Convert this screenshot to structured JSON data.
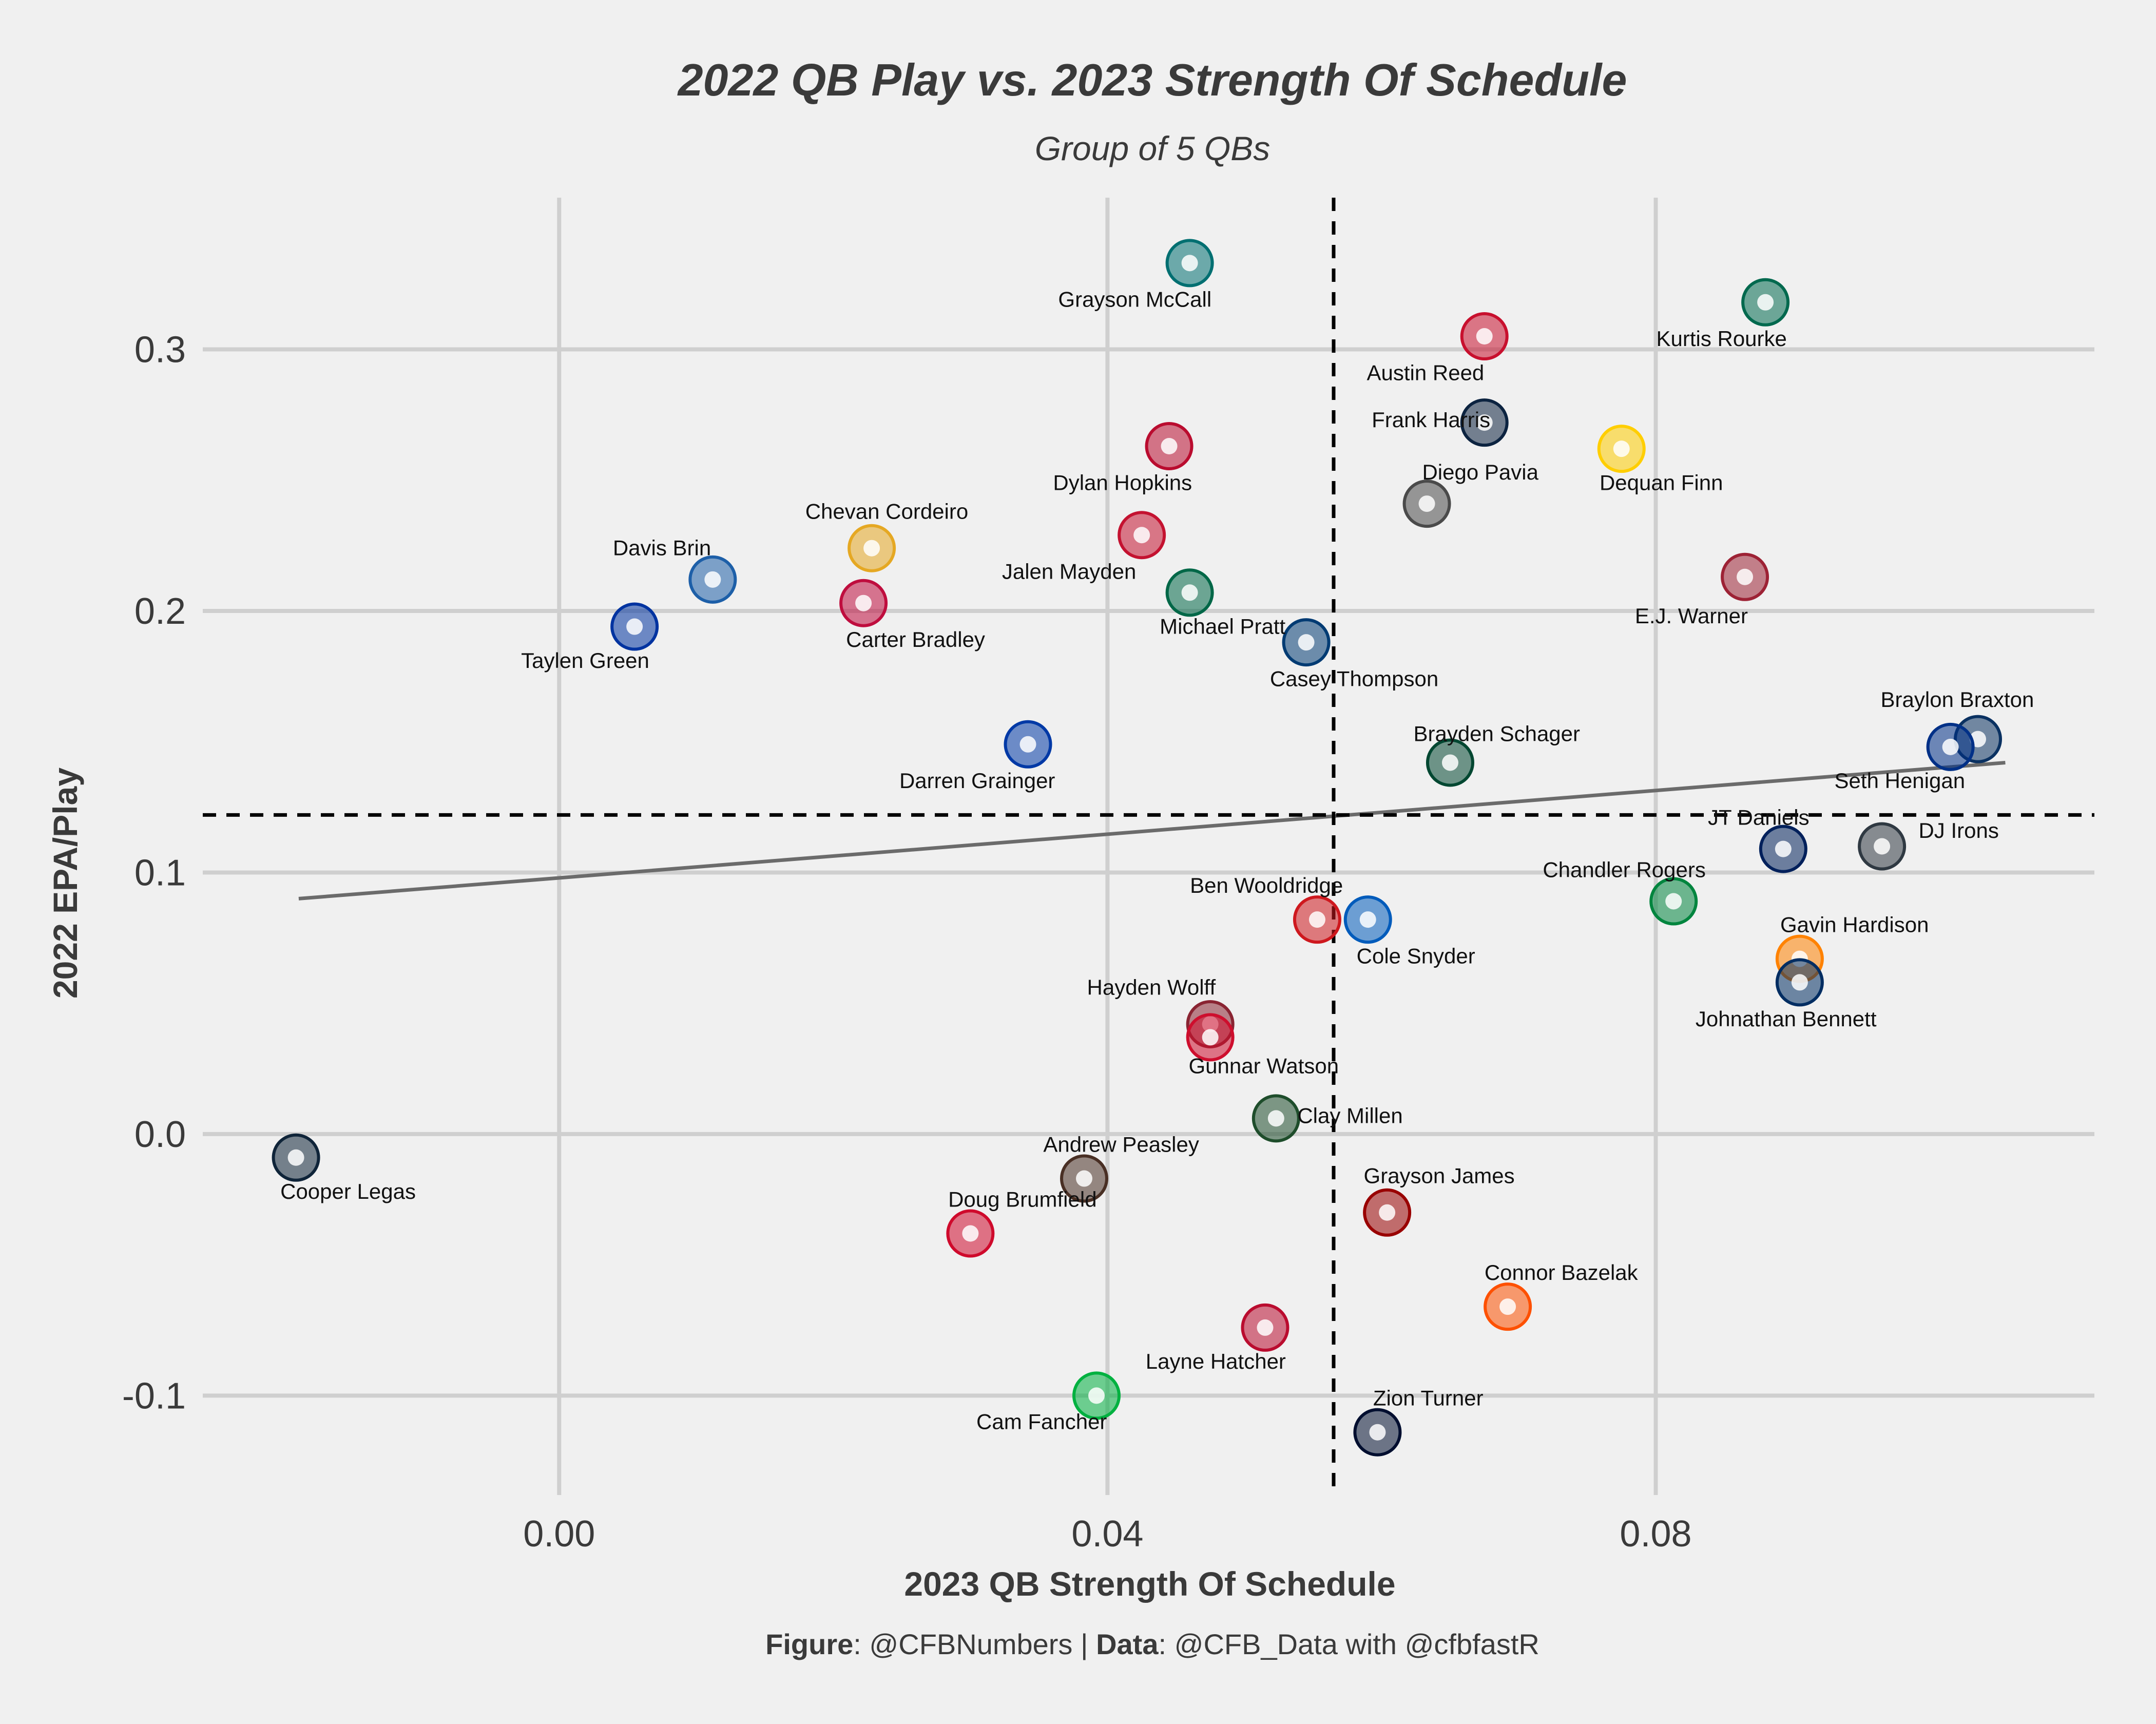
{
  "chart_data": {
    "type": "scatter",
    "title": "2022 QB Play vs. 2023 Strength Of Schedule",
    "subtitle": "Group of 5 QBs",
    "xlabel": "2023 QB Strength Of Schedule",
    "ylabel": "2022 EPA/Play",
    "xlim": [
      -0.026,
      0.112
    ],
    "ylim": [
      -0.138,
      0.358
    ],
    "x_ticks": [
      0.0,
      0.04,
      0.08
    ],
    "x_tick_labels": [
      "0.00",
      "0.04",
      "0.08"
    ],
    "y_ticks": [
      -0.1,
      0.0,
      0.1,
      0.2,
      0.3
    ],
    "y_tick_labels": [
      "-0.1",
      "0.0",
      "0.1",
      "0.2",
      "0.3"
    ],
    "grid": true,
    "legend": "none",
    "mean_lines": {
      "x": 0.0565,
      "y": 0.122
    },
    "trend_line": {
      "x": [
        -0.019,
        0.1055
      ],
      "y": [
        0.09,
        0.142
      ]
    },
    "points": [
      {
        "name": "Grayson McCall",
        "x": 0.046,
        "y": 0.333,
        "color": "#006f71",
        "lx": 0.042,
        "ly": 0.319
      },
      {
        "name": "Kurtis Rourke",
        "x": 0.088,
        "y": 0.318,
        "color": "#00694e",
        "lx": 0.0848,
        "ly": 0.304
      },
      {
        "name": "Austin Reed",
        "x": 0.0675,
        "y": 0.305,
        "color": "#c8102e",
        "lx": 0.0632,
        "ly": 0.291
      },
      {
        "name": "Frank Harris",
        "x": 0.0675,
        "y": 0.272,
        "color": "#0c2340",
        "lx": 0.0636,
        "ly": 0.273
      },
      {
        "name": "Dequan Finn",
        "x": 0.0775,
        "y": 0.262,
        "color": "#ffce00",
        "lx": 0.0804,
        "ly": 0.249
      },
      {
        "name": "Dylan Hopkins",
        "x": 0.0445,
        "y": 0.263,
        "color": "#ba0c2f",
        "lx": 0.0411,
        "ly": 0.249
      },
      {
        "name": "Diego Pavia",
        "x": 0.0633,
        "y": 0.241,
        "color": "#4a4a4a",
        "lx": 0.0672,
        "ly": 0.253
      },
      {
        "name": "Chevan Cordeiro",
        "x": 0.0228,
        "y": 0.224,
        "color": "#e5a823",
        "lx": 0.0239,
        "ly": 0.238
      },
      {
        "name": "Davis Brin",
        "x": 0.0112,
        "y": 0.212,
        "color": "#1d5fa8",
        "lx": 0.0075,
        "ly": 0.224
      },
      {
        "name": "Jalen Mayden",
        "x": 0.0425,
        "y": 0.229,
        "color": "#c41230",
        "lx": 0.0372,
        "ly": 0.215
      },
      {
        "name": "E.J. Warner",
        "x": 0.0865,
        "y": 0.213,
        "color": "#9d2235",
        "lx": 0.0826,
        "ly": 0.198
      },
      {
        "name": "Michael Pratt",
        "x": 0.046,
        "y": 0.207,
        "color": "#006747",
        "lx": 0.0484,
        "ly": 0.194
      },
      {
        "name": "Carter Bradley",
        "x": 0.0222,
        "y": 0.203,
        "color": "#bf0d3e",
        "lx": 0.026,
        "ly": 0.189
      },
      {
        "name": "Taylen Green",
        "x": 0.0055,
        "y": 0.194,
        "color": "#0033a0",
        "lx": 0.0019,
        "ly": 0.181
      },
      {
        "name": "Casey Thompson",
        "x": 0.0545,
        "y": 0.188,
        "color": "#003b73",
        "lx": 0.058,
        "ly": 0.174
      },
      {
        "name": "Braylon Braxton",
        "x": 0.1035,
        "y": 0.151,
        "color": "#0a3161",
        "lx": 0.102,
        "ly": 0.166
      },
      {
        "name": "Darren Grainger",
        "x": 0.0342,
        "y": 0.149,
        "color": "#0039a6",
        "lx": 0.0305,
        "ly": 0.135
      },
      {
        "name": "Brayden Schager",
        "x": 0.065,
        "y": 0.142,
        "color": "#024731",
        "lx": 0.0684,
        "ly": 0.153
      },
      {
        "name": "Seth Henigan",
        "x": 0.1015,
        "y": 0.148,
        "color": "#003087",
        "lx": 0.0978,
        "ly": 0.135
      },
      {
        "name": "JT Daniels",
        "x": 0.0893,
        "y": 0.109,
        "color": "#00205b",
        "lx": 0.0875,
        "ly": 0.121
      },
      {
        "name": "DJ Irons",
        "x": 0.0965,
        "y": 0.11,
        "color": "#2f3942",
        "lx": 0.1021,
        "ly": 0.116
      },
      {
        "name": "Chandler Rogers",
        "x": 0.0813,
        "y": 0.089,
        "color": "#00853e",
        "lx": 0.0777,
        "ly": 0.101
      },
      {
        "name": "Ben Wooldridge",
        "x": 0.0553,
        "y": 0.082,
        "color": "#ce181e",
        "lx": 0.0516,
        "ly": 0.095
      },
      {
        "name": "Cole Snyder",
        "x": 0.059,
        "y": 0.082,
        "color": "#005bbb",
        "lx": 0.0625,
        "ly": 0.068
      },
      {
        "name": "Gavin Hardison",
        "x": 0.0905,
        "y": 0.067,
        "color": "#ff8200",
        "lx": 0.0945,
        "ly": 0.08
      },
      {
        "name": "Johnathan Bennett",
        "x": 0.0905,
        "y": 0.058,
        "color": "#002d62",
        "lx": 0.0895,
        "ly": 0.044
      },
      {
        "name": "Hayden Wolff",
        "x": 0.0475,
        "y": 0.042,
        "color": "#8a2432",
        "lx": 0.0432,
        "ly": 0.056
      },
      {
        "name": "Gunnar Watson",
        "x": 0.0475,
        "y": 0.037,
        "color": "#ce0e2d",
        "lx": 0.0514,
        "ly": 0.026
      },
      {
        "name": "Clay Millen",
        "x": 0.0523,
        "y": 0.006,
        "color": "#1e4d2b",
        "lx": 0.0577,
        "ly": 0.007
      },
      {
        "name": "Cooper Legas",
        "x": -0.0192,
        "y": -0.009,
        "color": "#0f2439",
        "lx": -0.0154,
        "ly": -0.022
      },
      {
        "name": "Andrew Peasley",
        "x": 0.0383,
        "y": -0.017,
        "color": "#492f24",
        "lx": 0.041,
        "ly": -0.004
      },
      {
        "name": "Grayson James",
        "x": 0.0604,
        "y": -0.03,
        "color": "#990000",
        "lx": 0.0642,
        "ly": -0.016
      },
      {
        "name": "Doug Brumfield",
        "x": 0.03,
        "y": -0.038,
        "color": "#cf0a2c",
        "lx": 0.0338,
        "ly": -0.025
      },
      {
        "name": "Connor Bazelak",
        "x": 0.0692,
        "y": -0.066,
        "color": "#fe5000",
        "lx": 0.0731,
        "ly": -0.053
      },
      {
        "name": "Layne Hatcher",
        "x": 0.0515,
        "y": -0.074,
        "color": "#ba0c2f",
        "lx": 0.0479,
        "ly": -0.087
      },
      {
        "name": "Cam Fancher",
        "x": 0.0392,
        "y": -0.1,
        "color": "#00b140",
        "lx": 0.0352,
        "ly": -0.11
      },
      {
        "name": "Zion Turner",
        "x": 0.0597,
        "y": -0.114,
        "color": "#000e2f",
        "lx": 0.0634,
        "ly": -0.101
      }
    ]
  },
  "caption": {
    "figure_label": "Figure",
    "figure_value": ": @CFBNumbers | ",
    "data_label": "Data",
    "data_value": ": @CFB_Data with @cfbfastR"
  }
}
